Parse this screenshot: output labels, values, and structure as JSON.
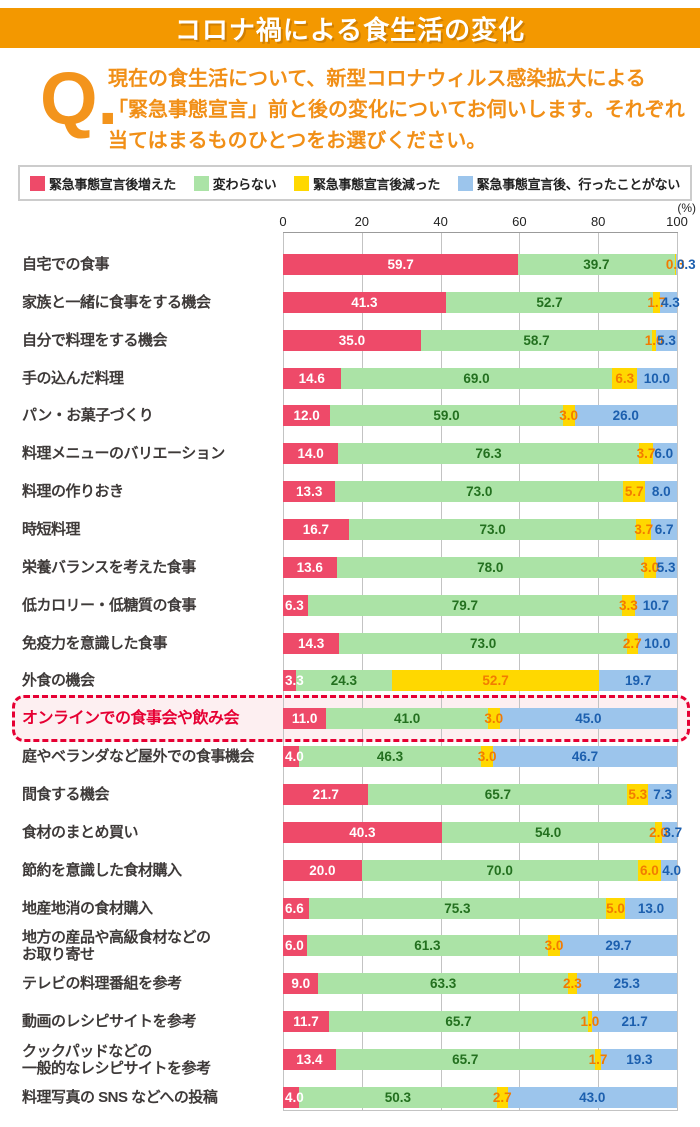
{
  "header": {
    "title": "コロナ禍による食生活の変化"
  },
  "question": {
    "q_mark": "Q.",
    "lines": [
      "現在の食生活について、新型コロナウィルス感染拡大による",
      "「緊急事態宣言」前と後の変化についてお伺いします。それぞれ",
      "当てはまるものひとつをお選びください。"
    ]
  },
  "legend": [
    {
      "label": "緊急事態宣言後増えた",
      "color": "#ee4a69"
    },
    {
      "label": "変わらない",
      "color": "#abe3a6"
    },
    {
      "label": "緊急事態宣言後減った",
      "color": "#ffd800"
    },
    {
      "label": "緊急事態宣言後、行ったことがない",
      "color": "#9cc5ec"
    }
  ],
  "colors": {
    "header_orange": "#f39800",
    "question_orange": "#f18f17",
    "highlight_red": "#e60033",
    "highlight_bg": "#fdeff1",
    "segment_colors": [
      "#ee4a69",
      "#abe3a6",
      "#ffd800",
      "#9cc5ec"
    ],
    "value_text_colors": [
      "#ffffff",
      "#23701f",
      "#f27c00",
      "#1c5fae"
    ],
    "grid": "#c3c3c3"
  },
  "chart_data": {
    "type": "bar",
    "stacked": true,
    "orientation": "horizontal",
    "unit_label": "(%)",
    "xlim": [
      0,
      100
    ],
    "x_ticks": [
      0,
      20,
      40,
      60,
      80,
      100
    ],
    "grid": true,
    "series_names": [
      "緊急事態宣言後増えた",
      "変わらない",
      "緊急事態宣言後減った",
      "緊急事態宣言後、行ったことがない"
    ],
    "rows": [
      {
        "label": "自宅での食事",
        "values": [
          59.7,
          39.7,
          0.3,
          0.3
        ]
      },
      {
        "label": "家族と一緒に食事をする機会",
        "values": [
          41.3,
          52.7,
          1.7,
          4.3
        ]
      },
      {
        "label": "自分で料理をする機会",
        "values": [
          35.0,
          58.7,
          1.0,
          5.3
        ]
      },
      {
        "label": "手の込んだ料理",
        "values": [
          14.6,
          69.0,
          6.3,
          10.0
        ]
      },
      {
        "label": "パン・お菓子づくり",
        "values": [
          12.0,
          59.0,
          3.0,
          26.0
        ]
      },
      {
        "label": "料理メニューのバリエーション",
        "values": [
          14.0,
          76.3,
          3.7,
          6.0
        ]
      },
      {
        "label": "料理の作りおき",
        "values": [
          13.3,
          73.0,
          5.7,
          8.0
        ]
      },
      {
        "label": "時短料理",
        "values": [
          16.7,
          73.0,
          3.7,
          6.7
        ]
      },
      {
        "label": "栄養バランスを考えた食事",
        "values": [
          13.6,
          78.0,
          3.0,
          5.3
        ]
      },
      {
        "label": "低カロリー・低糖質の食事",
        "values": [
          6.3,
          79.7,
          3.3,
          10.7
        ]
      },
      {
        "label": "免疫力を意識した食事",
        "values": [
          14.3,
          73.0,
          2.7,
          10.0
        ]
      },
      {
        "label": "外食の機会",
        "values": [
          3.3,
          24.3,
          52.7,
          19.7
        ]
      },
      {
        "label": "オンラインでの食事会や飲み会",
        "values": [
          11.0,
          41.0,
          3.0,
          45.0
        ],
        "highlight": true
      },
      {
        "label": "庭やベランダなど屋外での食事機会",
        "values": [
          4.0,
          46.3,
          3.0,
          46.7
        ]
      },
      {
        "label": "間食する機会",
        "values": [
          21.7,
          65.7,
          5.3,
          7.3
        ]
      },
      {
        "label": "食材のまとめ買い",
        "values": [
          40.3,
          54.0,
          2.0,
          3.7
        ]
      },
      {
        "label": "節約を意識した食材購入",
        "values": [
          20.0,
          70.0,
          6.0,
          4.0
        ]
      },
      {
        "label": "地産地消の食材購入",
        "values": [
          6.6,
          75.3,
          5.0,
          13.0
        ]
      },
      {
        "label": "地方の産品や高級食材などの\nお取り寄せ",
        "values": [
          6.0,
          61.3,
          3.0,
          29.7
        ]
      },
      {
        "label": "テレビの料理番組を参考",
        "values": [
          9.0,
          63.3,
          2.3,
          25.3
        ]
      },
      {
        "label": "動画のレシピサイトを参考",
        "values": [
          11.7,
          65.7,
          1.0,
          21.7
        ]
      },
      {
        "label": "クックパッドなどの\n一般的なレシピサイトを参考",
        "values": [
          13.4,
          65.7,
          1.7,
          19.3
        ]
      },
      {
        "label": "料理写真の SNS などへの投稿",
        "values": [
          4.0,
          50.3,
          2.7,
          43.0
        ]
      }
    ]
  }
}
